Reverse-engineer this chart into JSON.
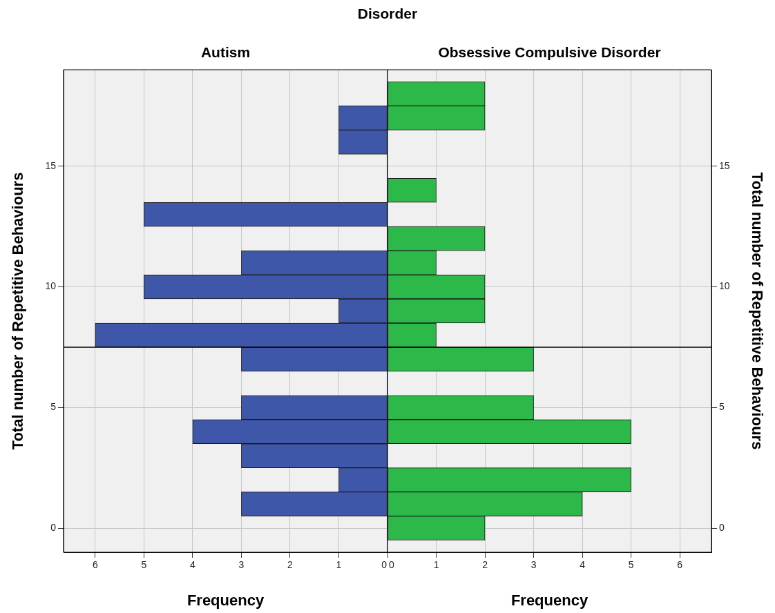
{
  "chart_data": [
    {
      "type": "histogram",
      "title": "Disorder",
      "subtitle": "Autism",
      "orientation": "horizontal",
      "bins": [
        -0.5,
        0.5,
        1.5,
        2.5,
        3.5,
        4.5,
        5.5,
        6.5,
        7.5,
        8.5,
        9.5,
        10.5,
        11.5,
        12.5,
        13.5,
        14.5,
        15.5,
        16.5,
        17.5,
        18.5
      ],
      "values": [
        0,
        3,
        1,
        3,
        4,
        3,
        0,
        3,
        6,
        1,
        5,
        3,
        0,
        5,
        0,
        0,
        1,
        1,
        0
      ],
      "color": "#3f57a8",
      "xlim": [
        6.65,
        0
      ],
      "xticks": [
        0,
        1,
        2,
        3,
        4,
        5,
        6
      ],
      "ylim": [
        -1,
        19
      ],
      "yticks": [
        0,
        5,
        10,
        15
      ],
      "xlabel": "Frequency",
      "ylabel": "Total number of Repetitive Behaviours",
      "grid": true,
      "ref_lines": [
        {
          "axis": "y",
          "value": 7.5,
          "color": "#000000"
        }
      ]
    },
    {
      "type": "histogram",
      "subtitle": "Obsessive Compulsive Disorder",
      "orientation": "horizontal",
      "bins": [
        -0.5,
        0.5,
        1.5,
        2.5,
        3.5,
        4.5,
        5.5,
        6.5,
        7.5,
        8.5,
        9.5,
        10.5,
        11.5,
        12.5,
        13.5,
        14.5,
        15.5,
        16.5,
        17.5,
        18.5
      ],
      "values": [
        2,
        4,
        5,
        0,
        5,
        3,
        0,
        3,
        1,
        2,
        2,
        1,
        2,
        0,
        1,
        0,
        0,
        2,
        2
      ],
      "color": "#2db84a",
      "xlim": [
        0,
        6.65
      ],
      "xticks": [
        0,
        1,
        2,
        3,
        4,
        5,
        6
      ],
      "ylim": [
        -1,
        19
      ],
      "yticks": [
        0,
        5,
        10,
        15
      ],
      "xlabel": "Frequency",
      "ylabel": "Total number of Repetitive Behaviours",
      "grid": true,
      "ref_lines": [
        {
          "axis": "y",
          "value": 7.5,
          "color": "#000000"
        }
      ]
    }
  ]
}
